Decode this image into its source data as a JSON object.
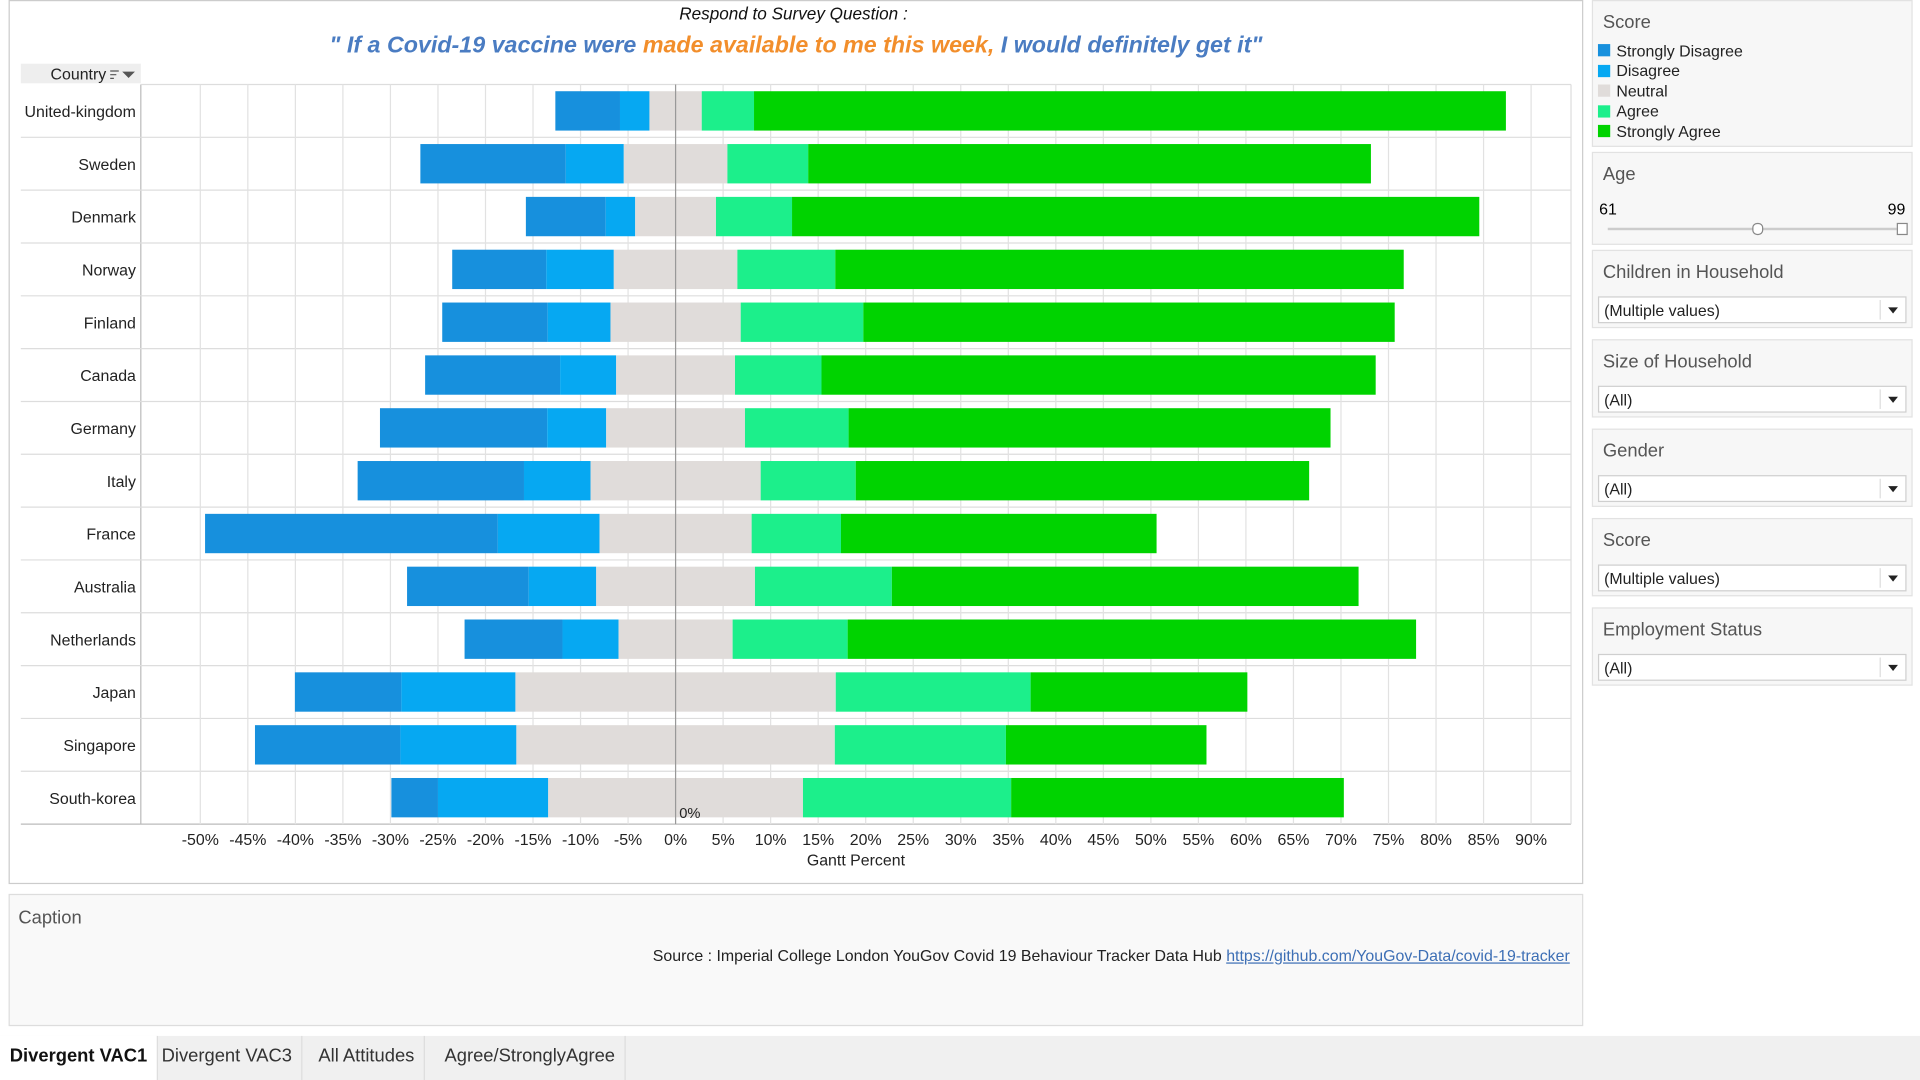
{
  "chart_data": {
    "type": "diverging_bar",
    "subtitle": "Respond to Survey Question :",
    "title_parts": [
      {
        "text": "\" If a Covid-19 vaccine were ",
        "color": "#4a7cc2"
      },
      {
        "text": "made available to me this week,",
        "color": "#f28e2b"
      },
      {
        "text": " I would definitely get it\"",
        "color": "#4a7cc2"
      }
    ],
    "y_header": "Country",
    "x_label": "Gantt Percent",
    "zero_label": "0%",
    "categories": [
      "United-kingdom",
      "Sweden",
      "Denmark",
      "Norway",
      "Finland",
      "Canada",
      "Germany",
      "Italy",
      "France",
      "Australia",
      "Netherlands",
      "Japan",
      "Singapore",
      "South-korea"
    ],
    "neutral_series": "Neutral",
    "series": [
      {
        "name": "Strongly Disagree",
        "color": "#1790dd",
        "values": [
          6.8,
          15.3,
          8.4,
          9.9,
          11.1,
          14.2,
          17.6,
          17.5,
          30.8,
          12.8,
          10.3,
          11.2,
          15.3,
          4.9
        ]
      },
      {
        "name": "Disagree",
        "color": "#06a8f2",
        "values": [
          3.1,
          6.1,
          3.1,
          7.1,
          6.6,
          5.9,
          6.2,
          7.0,
          10.7,
          7.1,
          5.9,
          12.0,
          12.2,
          11.6
        ]
      },
      {
        "name": "Neutral",
        "color": "#e0dcda",
        "values": [
          5.5,
          10.9,
          8.5,
          13.0,
          13.7,
          12.5,
          14.6,
          17.9,
          16.0,
          16.7,
          12.0,
          33.7,
          33.5,
          26.8
        ]
      },
      {
        "name": "Agree",
        "color": "#1cef8b",
        "values": [
          5.5,
          8.5,
          8.0,
          10.3,
          12.9,
          9.1,
          10.9,
          10.0,
          9.4,
          14.4,
          12.1,
          20.5,
          18.0,
          21.9
        ]
      },
      {
        "name": "Strongly Agree",
        "color": "#00d300",
        "values": [
          79.1,
          59.2,
          72.3,
          59.8,
          55.9,
          58.3,
          50.7,
          47.7,
          33.2,
          49.1,
          59.8,
          22.8,
          21.1,
          35.0
        ]
      }
    ],
    "xlim": [
      -55.1,
      94.2
    ],
    "xticks": [
      {
        "value": -50,
        "label": "-50%"
      },
      {
        "value": -45,
        "label": "-45%"
      },
      {
        "value": -40,
        "label": "-40%"
      },
      {
        "value": -35,
        "label": "-35%"
      },
      {
        "value": -30,
        "label": "-30%"
      },
      {
        "value": -25,
        "label": "-25%"
      },
      {
        "value": -20,
        "label": "-20%"
      },
      {
        "value": -15,
        "label": "-15%"
      },
      {
        "value": -10,
        "label": "-10%"
      },
      {
        "value": -5,
        "label": "-5%"
      },
      {
        "value": 0,
        "label": "0%"
      },
      {
        "value": 5,
        "label": "5%"
      },
      {
        "value": 10,
        "label": "10%"
      },
      {
        "value": 15,
        "label": "15%"
      },
      {
        "value": 20,
        "label": "20%"
      },
      {
        "value": 25,
        "label": "25%"
      },
      {
        "value": 30,
        "label": "30%"
      },
      {
        "value": 35,
        "label": "35%"
      },
      {
        "value": 40,
        "label": "40%"
      },
      {
        "value": 45,
        "label": "45%"
      },
      {
        "value": 50,
        "label": "50%"
      },
      {
        "value": 55,
        "label": "55%"
      },
      {
        "value": 60,
        "label": "60%"
      },
      {
        "value": 65,
        "label": "65%"
      },
      {
        "value": 70,
        "label": "70%"
      },
      {
        "value": 75,
        "label": "75%"
      },
      {
        "value": 80,
        "label": "80%"
      },
      {
        "value": 85,
        "label": "85%"
      },
      {
        "value": 90,
        "label": "90%"
      }
    ],
    "grid": true
  },
  "legend_title": "Score",
  "age": {
    "title": "Age",
    "min": 61,
    "max": 99
  },
  "filters": [
    {
      "title": "Children in Household",
      "value": "(Multiple values)"
    },
    {
      "title": "Size of Household",
      "value": "(All)"
    },
    {
      "title": "Gender",
      "value": "(All)"
    },
    {
      "title": "Score",
      "value": "(Multiple values)"
    },
    {
      "title": "Employment Status",
      "value": "(All)"
    }
  ],
  "caption": {
    "title": "Caption",
    "source": "Source : Imperial College London YouGov Covid 19 Behaviour Tracker Data Hub",
    "link": "https://github.com/YouGov-Data/covid-19-tracker"
  },
  "tabs": [
    "Divergent VAC1",
    "Divergent VAC3",
    "All Attitudes",
    "Agree/StronglyAgree"
  ]
}
